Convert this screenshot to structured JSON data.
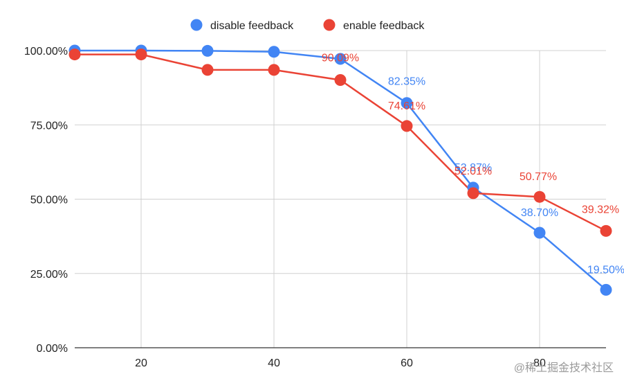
{
  "chart_data": {
    "type": "line",
    "title": "",
    "xlabel": "",
    "ylabel": "",
    "xlim": [
      10,
      90
    ],
    "ylim": [
      0,
      100
    ],
    "x_ticks": [
      20,
      40,
      60,
      80
    ],
    "y_ticks": [
      0,
      25,
      50,
      75,
      100
    ],
    "y_tick_labels": [
      "0.00%",
      "25.00%",
      "50.00%",
      "75.00%",
      "100.00%"
    ],
    "grid": true,
    "legend_position": "top",
    "series": [
      {
        "name": "disable feedback",
        "color": "#4285F4",
        "x": [
          10,
          20,
          30,
          40,
          50,
          60,
          70,
          80,
          90
        ],
        "y": [
          100,
          100,
          99.9,
          99.6,
          97.2,
          82.35,
          53.87,
          38.7,
          19.5
        ],
        "labels": [
          {
            "x": 50,
            "y": 97.2,
            "text": ""
          },
          {
            "x": 60,
            "y": 82.35,
            "text": "82.35%"
          },
          {
            "x": 70,
            "y": 53.87,
            "text": "53.87%"
          },
          {
            "x": 80,
            "y": 38.7,
            "text": "38.70%"
          },
          {
            "x": 90,
            "y": 19.5,
            "text": "19.50%"
          }
        ]
      },
      {
        "name": "enable feedback",
        "color": "#EA4335",
        "x": [
          10,
          20,
          30,
          40,
          50,
          60,
          70,
          80,
          90
        ],
        "y": [
          98.7,
          98.7,
          93.5,
          93.5,
          90.09,
          74.61,
          52.01,
          50.77,
          39.32
        ],
        "labels": [
          {
            "x": 50,
            "y": 90.09,
            "text": "90.09%"
          },
          {
            "x": 60,
            "y": 74.61,
            "text": "74.61%"
          },
          {
            "x": 70,
            "y": 52.01,
            "text": "52.01%"
          },
          {
            "x": 80,
            "y": 50.77,
            "text": "50.77%"
          },
          {
            "x": 90,
            "y": 39.32,
            "text": "39.32%"
          }
        ]
      }
    ]
  },
  "watermark": "@稀土掘金技术社区"
}
